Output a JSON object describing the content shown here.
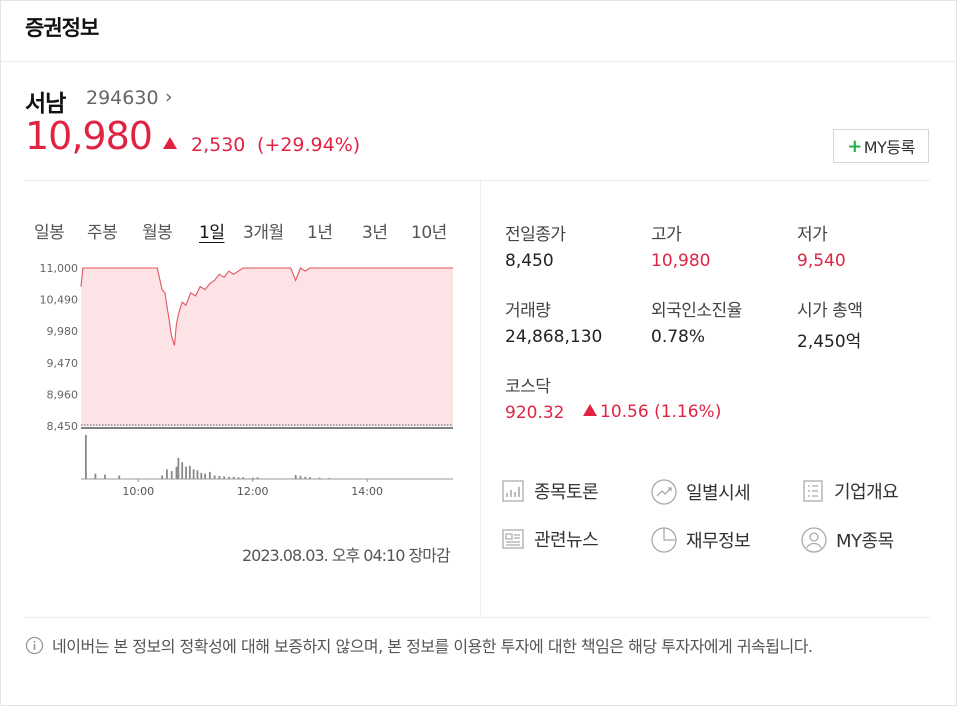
{
  "header": {
    "title": "증권정보"
  },
  "stock": {
    "name": "서남",
    "code": "294630",
    "chevron": "›",
    "price": "10,980",
    "change": "2,530",
    "change_pct": "(+29.94%)",
    "up_color": "#e12343"
  },
  "my_button": {
    "plus": "+",
    "label": "MY등록"
  },
  "period_tabs": [
    "일봉",
    "주봉",
    "월봉",
    "1일",
    "3개월",
    "1년",
    "3년",
    "10년"
  ],
  "active_tab": "1일",
  "timestamp": "2023.08.03. 오후 04:10 장마감",
  "stats": {
    "prev_close": {
      "label": "전일종가",
      "value": "8,450"
    },
    "high": {
      "label": "고가",
      "value": "10,980"
    },
    "low": {
      "label": "저가",
      "value": "9,540"
    },
    "volume": {
      "label": "거래량",
      "value": "24,868,130"
    },
    "foreign_ratio": {
      "label": "외국인소진율",
      "value": "0.78%"
    },
    "market_cap": {
      "label": "시가 총액",
      "value": "2,450억"
    }
  },
  "kosdaq": {
    "label": "코스닥",
    "value": "920.32",
    "change": "10.56 (1.16%)"
  },
  "links": [
    {
      "label": "종목토론",
      "icon": "discussion-chart-icon"
    },
    {
      "label": "일별시세",
      "icon": "daily-trend-icon"
    },
    {
      "label": "기업개요",
      "icon": "company-list-icon"
    },
    {
      "label": "관련뉴스",
      "icon": "news-icon"
    },
    {
      "label": "재무정보",
      "icon": "pie-chart-icon"
    },
    {
      "label": "MY종목",
      "icon": "user-icon"
    }
  ],
  "disclaimer": "네이버는 본 정보의 정확성에 대해 보증하지 않으며, 본 정보를 이용한 투자에 대한 책임은 해당 투자자에게 귀속됩니다.",
  "chart_data": {
    "type": "area",
    "ylim": [
      8450,
      11000
    ],
    "y_ticks": [
      "11,000",
      "10,490",
      "9,980",
      "9,470",
      "8,960",
      "8,450"
    ],
    "x_ticks": [
      "10:00",
      "12:00",
      "14:00"
    ],
    "baseline": 8450,
    "x": [
      "09:00",
      "09:02",
      "09:05",
      "09:10",
      "09:20",
      "09:30",
      "09:40",
      "09:50",
      "10:00",
      "10:10",
      "10:20",
      "10:25",
      "10:28",
      "10:30",
      "10:32",
      "10:35",
      "10:38",
      "10:40",
      "10:43",
      "10:46",
      "10:50",
      "10:55",
      "11:00",
      "11:05",
      "11:10",
      "11:15",
      "11:20",
      "11:25",
      "11:30",
      "11:35",
      "11:40",
      "11:45",
      "11:50",
      "11:55",
      "12:00",
      "12:10",
      "12:20",
      "12:30",
      "12:40",
      "12:45",
      "12:50",
      "12:55",
      "13:00",
      "13:10",
      "13:20",
      "13:30",
      "13:40",
      "14:00",
      "14:30",
      "15:00",
      "15:30"
    ],
    "price": [
      10700,
      11000,
      11000,
      11000,
      11000,
      11000,
      11000,
      11000,
      11000,
      11000,
      11000,
      10650,
      10600,
      10400,
      10200,
      9900,
      9750,
      10100,
      10300,
      10450,
      10400,
      10600,
      10550,
      10700,
      10650,
      10750,
      10800,
      10900,
      10850,
      10950,
      10900,
      10950,
      11000,
      11000,
      11000,
      11000,
      11000,
      11000,
      11000,
      10800,
      11000,
      10950,
      11000,
      11000,
      11000,
      11000,
      11000,
      11000,
      11000,
      11000,
      11000
    ],
    "volume_bars": [
      {
        "t": "09:05",
        "v": 100
      },
      {
        "t": "09:15",
        "v": 12
      },
      {
        "t": "09:25",
        "v": 10
      },
      {
        "t": "09:40",
        "v": 8
      },
      {
        "t": "10:25",
        "v": 8
      },
      {
        "t": "10:30",
        "v": 22
      },
      {
        "t": "10:35",
        "v": 18
      },
      {
        "t": "10:40",
        "v": 28
      },
      {
        "t": "10:42",
        "v": 48
      },
      {
        "t": "10:46",
        "v": 38
      },
      {
        "t": "10:50",
        "v": 28
      },
      {
        "t": "10:54",
        "v": 30
      },
      {
        "t": "10:58",
        "v": 22
      },
      {
        "t": "11:02",
        "v": 20
      },
      {
        "t": "11:06",
        "v": 14
      },
      {
        "t": "11:10",
        "v": 12
      },
      {
        "t": "11:15",
        "v": 16
      },
      {
        "t": "11:20",
        "v": 8
      },
      {
        "t": "11:25",
        "v": 7
      },
      {
        "t": "11:30",
        "v": 6
      },
      {
        "t": "11:35",
        "v": 5
      },
      {
        "t": "11:40",
        "v": 5
      },
      {
        "t": "11:45",
        "v": 4
      },
      {
        "t": "11:50",
        "v": 4
      },
      {
        "t": "12:00",
        "v": 3
      },
      {
        "t": "12:05",
        "v": 4
      },
      {
        "t": "12:45",
        "v": 9
      },
      {
        "t": "12:50",
        "v": 7
      },
      {
        "t": "12:55",
        "v": 5
      },
      {
        "t": "13:00",
        "v": 4
      },
      {
        "t": "13:10",
        "v": 3
      },
      {
        "t": "13:20",
        "v": 2
      }
    ]
  }
}
